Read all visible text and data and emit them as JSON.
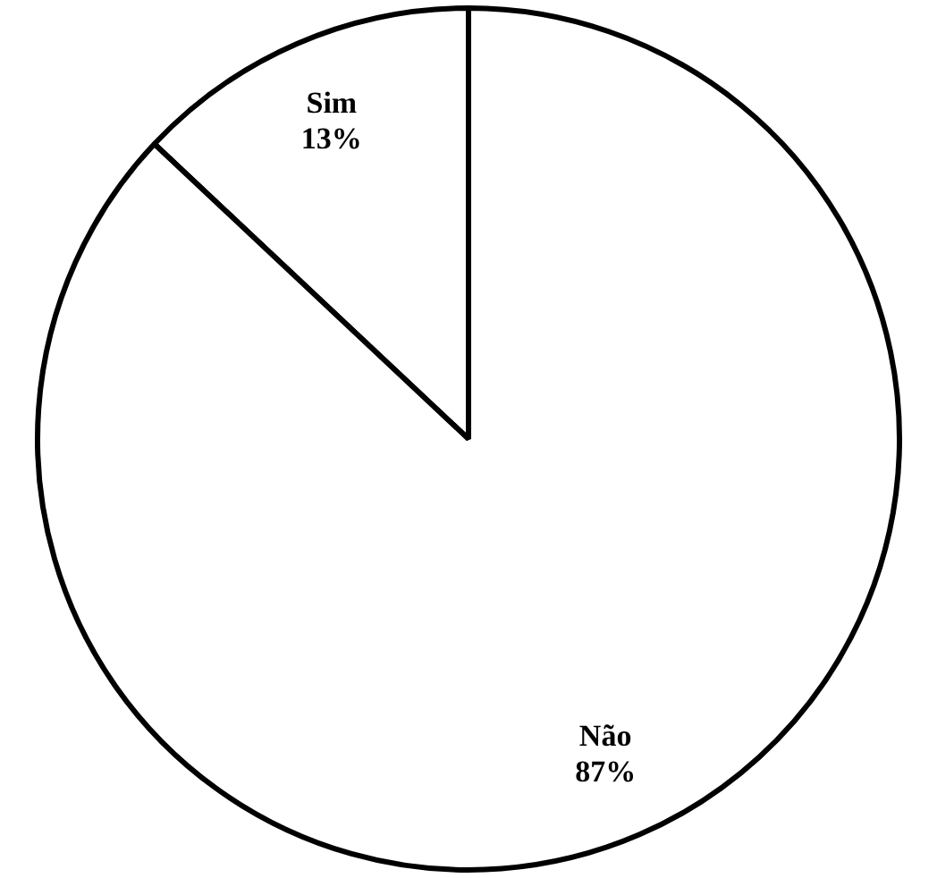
{
  "chart_data": {
    "type": "pie",
    "categories": [
      "Sim",
      "Não"
    ],
    "values": [
      13,
      87
    ],
    "colors": [
      "#ffffff",
      "#ffffff"
    ],
    "value_labels": [
      "13%",
      "87%"
    ],
    "legend": false
  }
}
